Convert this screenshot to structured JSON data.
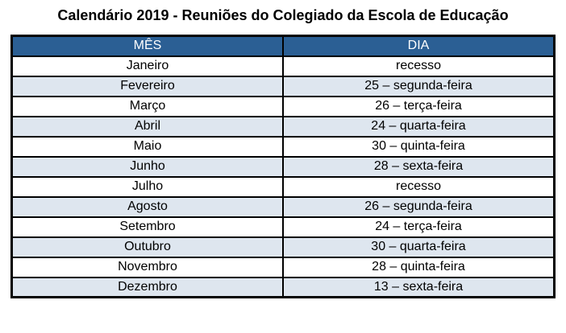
{
  "title": "Calendário 2019 - Reuniões do Colegiado da Escola de Educação",
  "table": {
    "headers": [
      "MÊS",
      "DIA"
    ],
    "rows": [
      [
        "Janeiro",
        "recesso"
      ],
      [
        "Fevereiro",
        "25 – segunda-feira"
      ],
      [
        "Março",
        "26 – terça-feira"
      ],
      [
        "Abril",
        "24 – quarta-feira"
      ],
      [
        "Maio",
        "30 – quinta-feira"
      ],
      [
        "Junho",
        "28 – sexta-feira"
      ],
      [
        "Julho",
        "recesso"
      ],
      [
        "Agosto",
        "26 – segunda-feira"
      ],
      [
        "Setembro",
        "24 – terça-feira"
      ],
      [
        "Outubro",
        "30 – quarta-feira"
      ],
      [
        "Novembro",
        "28 – quinta-feira"
      ],
      [
        "Dezembro",
        "13 – sexta-feira"
      ]
    ],
    "colors": {
      "header_bg": "#2B5F94",
      "header_text": "#FFFFFF",
      "row_bg": "#FFFFFF",
      "row_alt_bg": "#DEE6EF",
      "border": "#000000",
      "text": "#000000"
    }
  }
}
